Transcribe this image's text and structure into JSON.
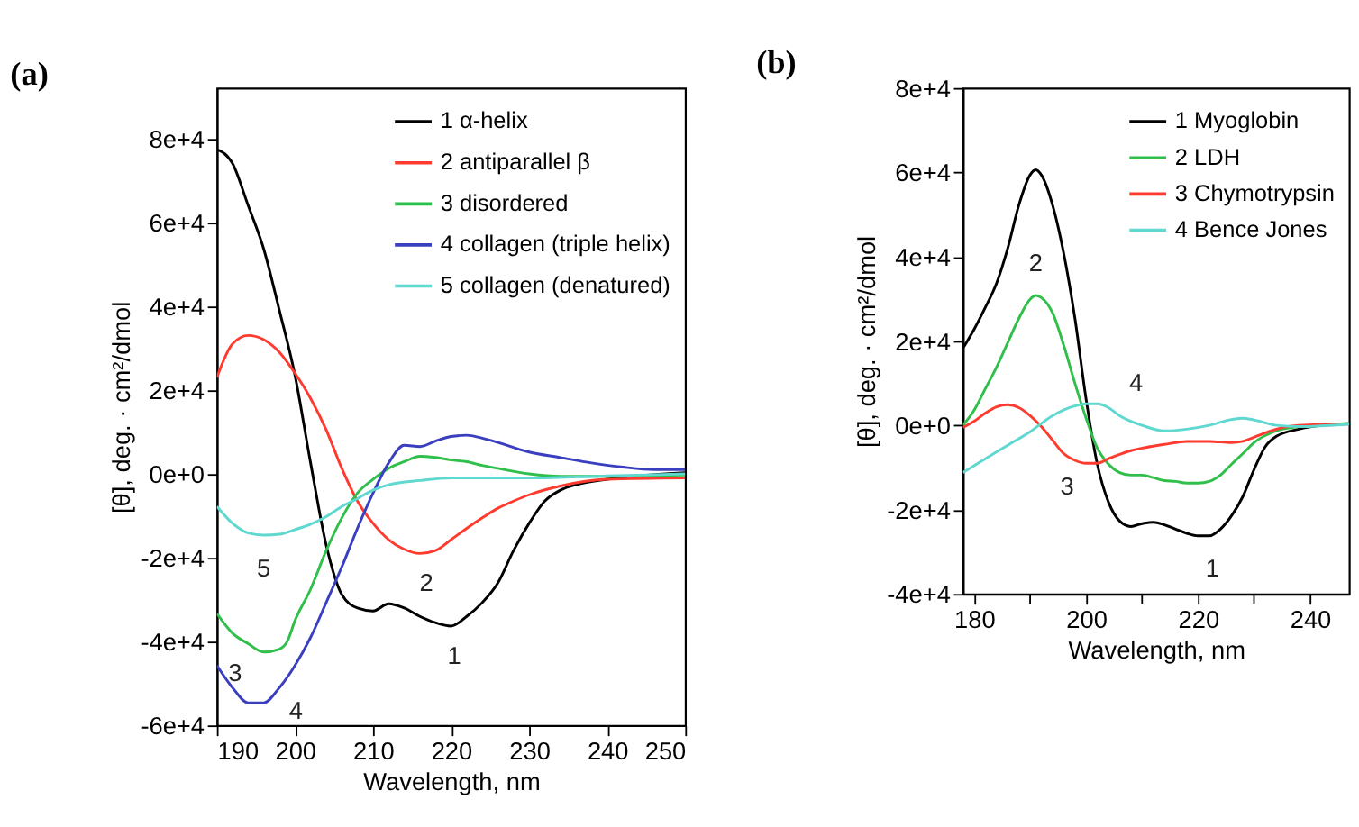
{
  "chart_data": [
    {
      "type": "line",
      "title": "(a)",
      "xlabel": "Wavelength, nm",
      "ylabel": "[θ], deg. · cm²/dmol",
      "legend": "top right",
      "grid": false,
      "marker": "none",
      "line_style": "solid",
      "xlim": [
        190,
        250
      ],
      "xticks": [
        190,
        200,
        210,
        220,
        230,
        240,
        250
      ],
      "ylim": [
        -60000,
        92000
      ],
      "yticks": [
        {
          "value": -60000,
          "label": "-6e+4"
        },
        {
          "value": -40000,
          "label": "-4e+4"
        },
        {
          "value": -20000,
          "label": "-2e+4"
        },
        {
          "value": 0,
          "label": "0e+0"
        },
        {
          "value": 20000,
          "label": "2e+4"
        },
        {
          "value": 40000,
          "label": "4e+4"
        },
        {
          "value": 60000,
          "label": "6e+4"
        },
        {
          "value": 80000,
          "label": "8e+4"
        }
      ],
      "series": [
        {
          "name": "1 α-helix",
          "color": "#000000",
          "x": [
            190,
            192,
            194,
            196,
            198,
            200,
            202,
            204,
            206,
            208,
            210,
            212,
            214,
            216,
            218,
            220,
            222,
            224,
            226,
            228,
            230,
            232,
            234,
            236,
            240,
            245,
            250
          ],
          "values": [
            77400,
            74000,
            64000,
            53600,
            39000,
            23500,
            2600,
            -17000,
            -28800,
            -32000,
            -32700,
            -31000,
            -32000,
            -34000,
            -35500,
            -36300,
            -34000,
            -30700,
            -26000,
            -18300,
            -11800,
            -6500,
            -3900,
            -2600,
            -1300,
            -300,
            300
          ]
        },
        {
          "name": "2 antiparallel β",
          "color": "#ff3b2f",
          "x": [
            190,
            192,
            194,
            196,
            198,
            200,
            202,
            204,
            206,
            208,
            210,
            212,
            214,
            216,
            218,
            220,
            222,
            224,
            226,
            228,
            230,
            234,
            240,
            250
          ],
          "values": [
            23000,
            31000,
            33000,
            32000,
            29000,
            24000,
            18000,
            10500,
            1300,
            -6500,
            -11800,
            -15700,
            -18000,
            -19000,
            -18300,
            -15700,
            -13000,
            -10500,
            -8200,
            -6500,
            -5000,
            -2900,
            -1300,
            -1000
          ]
        },
        {
          "name": "3 disordered",
          "color": "#2fbf4a",
          "x": [
            190,
            192,
            194,
            196,
            198,
            199,
            200,
            202,
            204,
            206,
            208,
            210,
            212,
            214,
            216,
            218,
            220,
            222,
            224,
            226,
            230,
            234,
            240,
            250
          ],
          "values": [
            -33300,
            -38000,
            -40500,
            -42500,
            -41800,
            -40000,
            -35000,
            -27500,
            -18300,
            -10500,
            -4600,
            -1300,
            1300,
            2900,
            4200,
            3900,
            3300,
            2900,
            2000,
            1300,
            0,
            -600,
            -600,
            -300
          ]
        },
        {
          "name": "4 collagen (triple helix)",
          "color": "#3a3fbf",
          "x": [
            190,
            192,
            194,
            196,
            198,
            200,
            202,
            204,
            206,
            208,
            210,
            212,
            214,
            216,
            218,
            220,
            222,
            224,
            226,
            228,
            230,
            234,
            238,
            242,
            246,
            250
          ],
          "values": [
            -45700,
            -51000,
            -54600,
            -54600,
            -51000,
            -45700,
            -39000,
            -30700,
            -22200,
            -13000,
            -4600,
            2600,
            6800,
            6500,
            7800,
            8900,
            9200,
            8500,
            7500,
            6300,
            5200,
            3900,
            2600,
            1600,
            1000,
            1000
          ]
        },
        {
          "name": "5 collagen (denatured)",
          "color": "#5fd8d0",
          "x": [
            190,
            192,
            194,
            196,
            198,
            200,
            202,
            204,
            206,
            208,
            210,
            212,
            216,
            220,
            230,
            240,
            250
          ],
          "values": [
            -7800,
            -11800,
            -14100,
            -14600,
            -14400,
            -13300,
            -12000,
            -10200,
            -7800,
            -5900,
            -3900,
            -2600,
            -1600,
            -1000,
            -1000,
            -500,
            0
          ]
        }
      ],
      "annotations": [
        {
          "text": "1",
          "x": 220,
          "y": -36300
        },
        {
          "text": "2",
          "x": 216,
          "y": -19000
        },
        {
          "text": "3",
          "x": 194,
          "y": -40500
        },
        {
          "text": "4",
          "x": 198,
          "y": -51000
        },
        {
          "text": "5",
          "x": 196,
          "y": -14600
        }
      ]
    },
    {
      "type": "line",
      "title": "(b)",
      "xlabel": "Wavelength, nm",
      "ylabel": "[θ], deg. · cm²/dmol",
      "legend": "top right",
      "grid": false,
      "marker": "none",
      "line_style": "solid",
      "xlim": [
        178,
        247
      ],
      "xticks": [
        180,
        {
          "value": 190,
          "label": null
        },
        200,
        {
          "value": 210,
          "label": null
        },
        220,
        {
          "value": 230,
          "label": null
        },
        240
      ],
      "ylim": [
        -40000,
        80000
      ],
      "yticks": [
        {
          "value": -40000,
          "label": "-4e+4"
        },
        {
          "value": -20000,
          "label": "-2e+4"
        },
        {
          "value": 0,
          "label": "0e+0"
        },
        {
          "value": 20000,
          "label": "2e+4"
        },
        {
          "value": 40000,
          "label": "4e+4"
        },
        {
          "value": 60000,
          "label": "6e+4"
        },
        {
          "value": 80000,
          "label": "8e+4"
        }
      ],
      "series": [
        {
          "name": "1 Myoglobin",
          "color": "#000000",
          "x": [
            178,
            180,
            182,
            184,
            186,
            188,
            190,
            191,
            192,
            194,
            196,
            198,
            200,
            202,
            204,
            206,
            208,
            210,
            212,
            214,
            216,
            218,
            220,
            222,
            224,
            226,
            228,
            230,
            232,
            234,
            238,
            242,
            247
          ],
          "values": [
            18300,
            22800,
            28000,
            33700,
            42000,
            52300,
            59400,
            60600,
            59400,
            52300,
            40800,
            25400,
            6200,
            -9200,
            -18200,
            -22700,
            -24000,
            -23300,
            -23000,
            -23600,
            -24600,
            -25600,
            -26200,
            -26200,
            -24600,
            -21400,
            -16900,
            -10500,
            -5100,
            -2600,
            -900,
            0,
            400
          ]
        },
        {
          "name": "2 LDH",
          "color": "#2fbf4a",
          "x": [
            178,
            180,
            182,
            184,
            186,
            188,
            190,
            191,
            192,
            194,
            196,
            198,
            200,
            202,
            204,
            206,
            208,
            210,
            212,
            214,
            216,
            218,
            220,
            222,
            224,
            226,
            228,
            230,
            234,
            238,
            247
          ],
          "values": [
            0,
            3600,
            8700,
            13800,
            19600,
            25400,
            29900,
            30800,
            30300,
            26700,
            19000,
            10000,
            1700,
            -5400,
            -9200,
            -11200,
            -11800,
            -11800,
            -12400,
            -13100,
            -13300,
            -13700,
            -13700,
            -13300,
            -11800,
            -9200,
            -6700,
            -4100,
            -1300,
            -300,
            400
          ]
        },
        {
          "name": "3 Chymotrypsin",
          "color": "#ff3b2f",
          "x": [
            178,
            180,
            182,
            184,
            186,
            188,
            190,
            192,
            194,
            196,
            198,
            200,
            202,
            204,
            206,
            208,
            210,
            214,
            218,
            222,
            226,
            228,
            230,
            234,
            238,
            247
          ],
          "values": [
            -500,
            1000,
            2900,
            4400,
            4900,
            4200,
            2300,
            -300,
            -3500,
            -6700,
            -8300,
            -9000,
            -9000,
            -7900,
            -6900,
            -6000,
            -5400,
            -4500,
            -3800,
            -3800,
            -4100,
            -3800,
            -2800,
            -900,
            0,
            300
          ]
        },
        {
          "name": "4 Bence Jones",
          "color": "#5fd8d0",
          "x": [
            178,
            182,
            186,
            190,
            194,
            198,
            200,
            202,
            204,
            206,
            210,
            214,
            218,
            222,
            226,
            228,
            230,
            234,
            238,
            247
          ],
          "values": [
            -11200,
            -7900,
            -4700,
            -1500,
            2300,
            4600,
            5100,
            5100,
            4200,
            2300,
            0,
            -1300,
            -900,
            0,
            1400,
            1700,
            1300,
            0,
            -300,
            300
          ]
        }
      ],
      "annotations": [
        {
          "text": "1",
          "x": 222,
          "y": -26200
        },
        {
          "text": "2",
          "x": 191,
          "y": 30800
        },
        {
          "text": "3",
          "x": 196,
          "y": -6700
        },
        {
          "text": "4",
          "x": 206,
          "y": 2300
        }
      ]
    }
  ]
}
